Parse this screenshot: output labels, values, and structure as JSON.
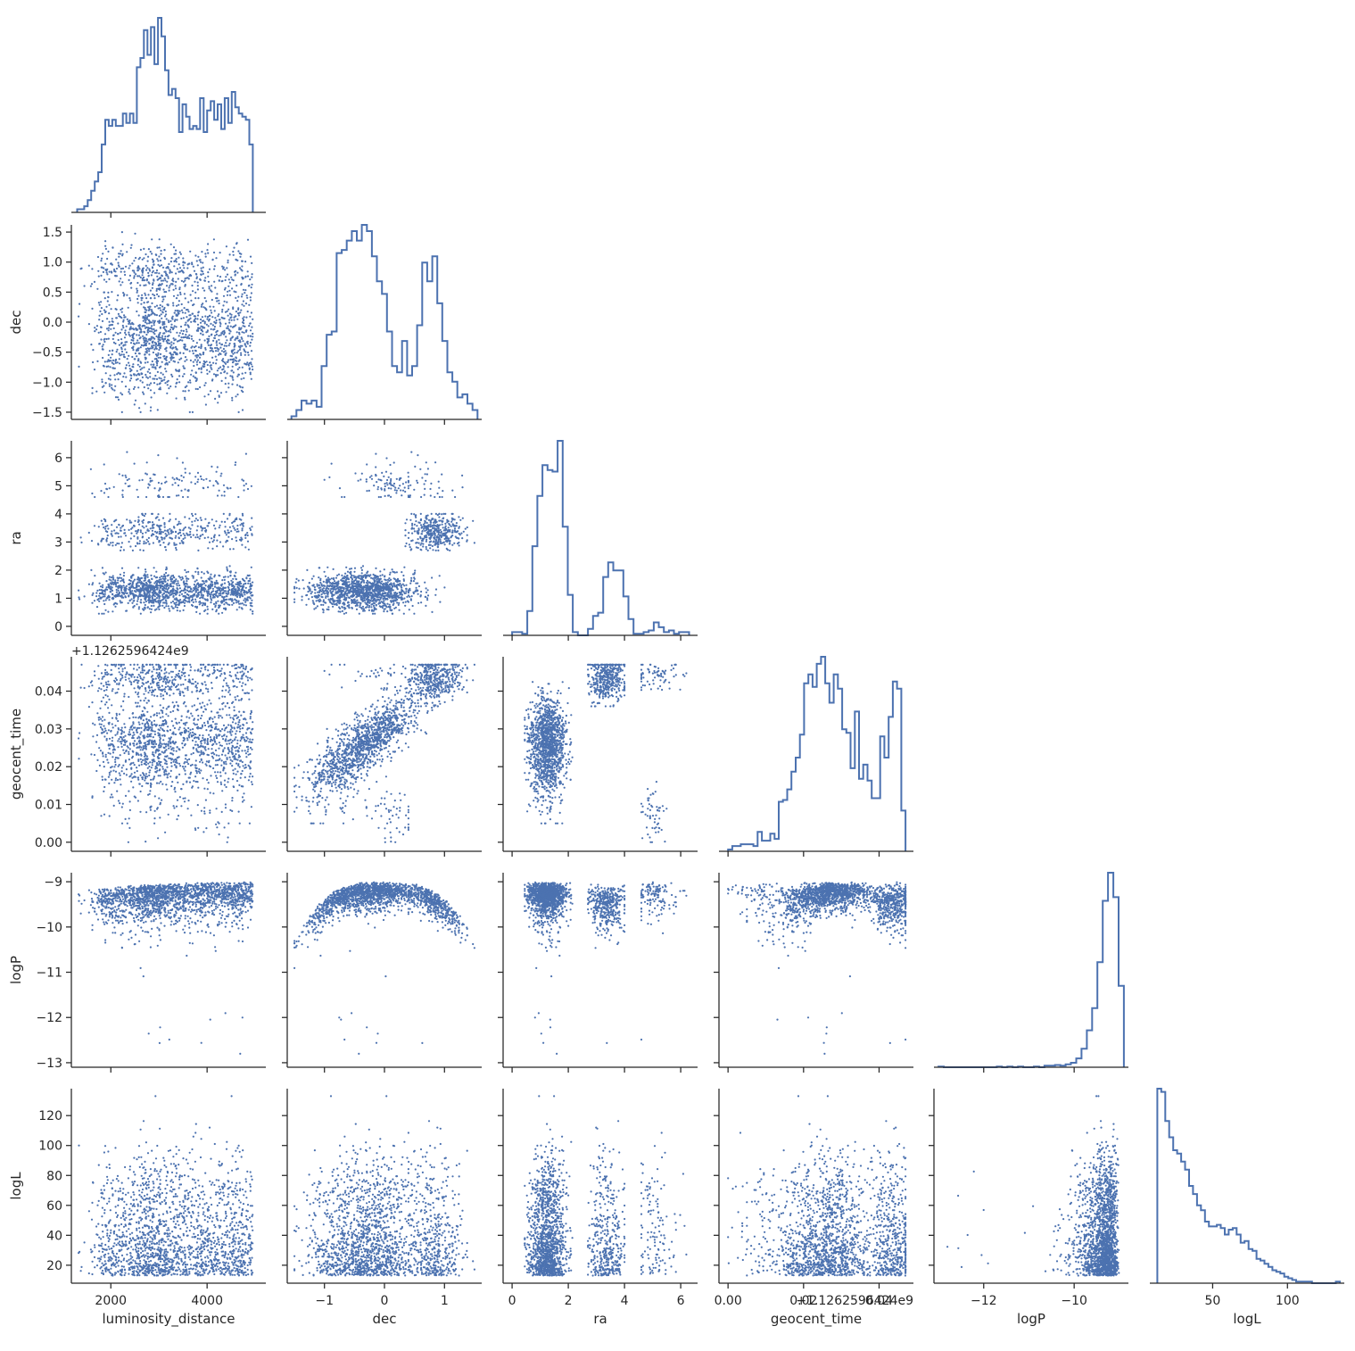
{
  "chart_data": {
    "type": "scatter",
    "subtype": "corner-pairplot",
    "diag_type": "step-histogram",
    "colors": {
      "marks": "#4c72b0",
      "axis": "#262626",
      "background": "#ffffff"
    },
    "grid": false,
    "variables": [
      {
        "name": "luminosity_distance",
        "lim": [
          1180,
          5220
        ],
        "ticks": [
          2000,
          4000
        ],
        "tick_labels": [
          "2000",
          "4000"
        ]
      },
      {
        "name": "dec",
        "lim": [
          -1.62,
          1.62
        ],
        "ticks": [
          -1.5,
          -1.0,
          -0.5,
          0.0,
          0.5,
          1.0,
          1.5
        ],
        "tick_labels": [
          "−1.5",
          "−1.0",
          "−0.5",
          "0.0",
          "0.5",
          "1.0",
          "1.5"
        ],
        "xticks": [
          -1,
          0,
          1
        ],
        "xtick_labels": [
          "−1",
          "0",
          "1"
        ]
      },
      {
        "name": "ra",
        "lim": [
          -0.32,
          6.6
        ],
        "ticks": [
          0,
          1,
          2,
          3,
          4,
          5,
          6
        ],
        "tick_labels": [
          "0",
          "1",
          "2",
          "3",
          "4",
          "5",
          "6"
        ],
        "xticks": [
          0,
          2,
          4,
          6
        ],
        "xtick_labels": [
          "0",
          "2",
          "4",
          "6"
        ]
      },
      {
        "name": "geocent_time",
        "offset_label": "+1.1262596424e9",
        "lim": [
          -0.0024,
          0.0491
        ],
        "ticks": [
          0.0,
          0.01,
          0.02,
          0.03,
          0.04
        ],
        "tick_labels": [
          "0.00",
          "0.01",
          "0.02",
          "0.03",
          "0.04"
        ],
        "xticks": [
          0.0,
          0.02,
          0.04
        ],
        "xtick_labels": [
          "0.00",
          "0.02",
          "0.04"
        ]
      },
      {
        "name": "logP",
        "lim": [
          -13.1,
          -8.8
        ],
        "ticks": [
          -13,
          -12,
          -11,
          -10,
          -9
        ],
        "tick_labels": [
          "−13",
          "−12",
          "−11",
          "−10",
          "−9"
        ],
        "xticks": [
          -12,
          -10
        ],
        "xtick_labels": [
          "−12",
          "−10"
        ]
      },
      {
        "name": "logL",
        "lim": [
          8,
          138
        ],
        "ticks": [
          20,
          40,
          60,
          80,
          100,
          120
        ],
        "tick_labels": [
          "20",
          "40",
          "60",
          "80",
          "100",
          "120"
        ],
        "xticks": [
          50,
          100
        ],
        "xtick_labels": [
          "50",
          "100"
        ]
      }
    ],
    "histograms": [
      {
        "variable": "luminosity_distance",
        "bins": [
          1300,
          4950
        ],
        "counts": [
          1,
          1,
          2,
          4,
          7,
          10,
          13,
          22,
          30,
          28,
          30,
          28,
          28,
          32,
          29,
          32,
          29,
          47,
          50,
          59,
          51,
          60,
          48,
          63,
          57,
          46,
          38,
          40,
          37,
          26,
          35,
          31,
          27,
          28,
          27,
          37,
          26,
          33,
          36,
          30,
          35,
          27,
          37,
          29,
          39,
          34,
          32,
          31,
          30,
          22
        ]
      },
      {
        "variable": "dec",
        "bins": [
          -1.55,
          1.55
        ],
        "counts": [
          1,
          3,
          6,
          5,
          6,
          4,
          17,
          27,
          28,
          53,
          54,
          57,
          60,
          57,
          62,
          60,
          52,
          44,
          40,
          28,
          17,
          15,
          25,
          14,
          17,
          30,
          50,
          44,
          52,
          37,
          25,
          15,
          12,
          7,
          8,
          5,
          3
        ]
      },
      {
        "variable": "ra",
        "bins": [
          0.0,
          6.3
        ],
        "counts": [
          2,
          2,
          1,
          15,
          55,
          86,
          105,
          102,
          101,
          120,
          67,
          25,
          2,
          0,
          0,
          4,
          12,
          14,
          36,
          45,
          40,
          40,
          24,
          10,
          1,
          1,
          2,
          3,
          8,
          5,
          2,
          3,
          1,
          2,
          2
        ]
      },
      {
        "variable": "geocent_time",
        "bins": [
          0.0,
          0.047
        ],
        "counts": [
          1,
          3,
          3,
          4,
          4,
          4,
          3,
          11,
          6,
          6,
          10,
          7,
          28,
          29,
          35,
          45,
          53,
          66,
          95,
          100,
          93,
          106,
          110,
          95,
          84,
          100,
          92,
          69,
          67,
          47,
          79,
          41,
          49,
          40,
          30,
          30,
          65,
          53,
          76,
          96,
          92,
          23
        ]
      },
      {
        "variable": "logP",
        "bins": [
          -13.0,
          -8.9
        ],
        "counts": [
          1,
          0,
          0,
          0,
          0,
          0,
          0,
          0,
          0,
          0,
          0,
          1,
          0,
          1,
          0,
          1,
          0,
          0,
          1,
          0,
          2,
          2,
          3,
          2,
          4,
          6,
          12,
          25,
          50,
          80,
          142,
          225,
          263,
          230,
          110
        ]
      },
      {
        "variable": "logL",
        "bins": [
          13,
          135
        ],
        "counts": [
          120,
          118,
          100,
          90,
          82,
          80,
          75,
          70,
          60,
          55,
          48,
          45,
          38,
          35,
          35,
          36,
          34,
          30,
          33,
          34,
          30,
          25,
          26,
          21,
          20,
          15,
          14,
          12,
          10,
          8,
          7,
          6,
          4,
          3,
          2,
          1,
          1,
          1,
          1,
          0,
          0,
          0,
          0,
          0,
          0,
          1
        ]
      }
    ],
    "scatter_panels": [
      {
        "x": "luminosity_distance",
        "y": "dec",
        "points": 1800
      },
      {
        "x": "luminosity_distance",
        "y": "ra",
        "points": 1800
      },
      {
        "x": "dec",
        "y": "ra",
        "points": 1800
      },
      {
        "x": "luminosity_distance",
        "y": "geocent_time",
        "points": 1800
      },
      {
        "x": "dec",
        "y": "geocent_time",
        "points": 1800
      },
      {
        "x": "ra",
        "y": "geocent_time",
        "points": 1800
      },
      {
        "x": "luminosity_distance",
        "y": "logP",
        "points": 1800
      },
      {
        "x": "dec",
        "y": "logP",
        "points": 1800
      },
      {
        "x": "ra",
        "y": "logP",
        "points": 1800
      },
      {
        "x": "geocent_time",
        "y": "logP",
        "points": 1800
      },
      {
        "x": "luminosity_distance",
        "y": "logL",
        "points": 1800
      },
      {
        "x": "dec",
        "y": "logL",
        "points": 1800
      },
      {
        "x": "ra",
        "y": "logL",
        "points": 1800
      },
      {
        "x": "geocent_time",
        "y": "logL",
        "points": 1800
      },
      {
        "x": "logP",
        "y": "logL",
        "points": 1800
      }
    ]
  }
}
